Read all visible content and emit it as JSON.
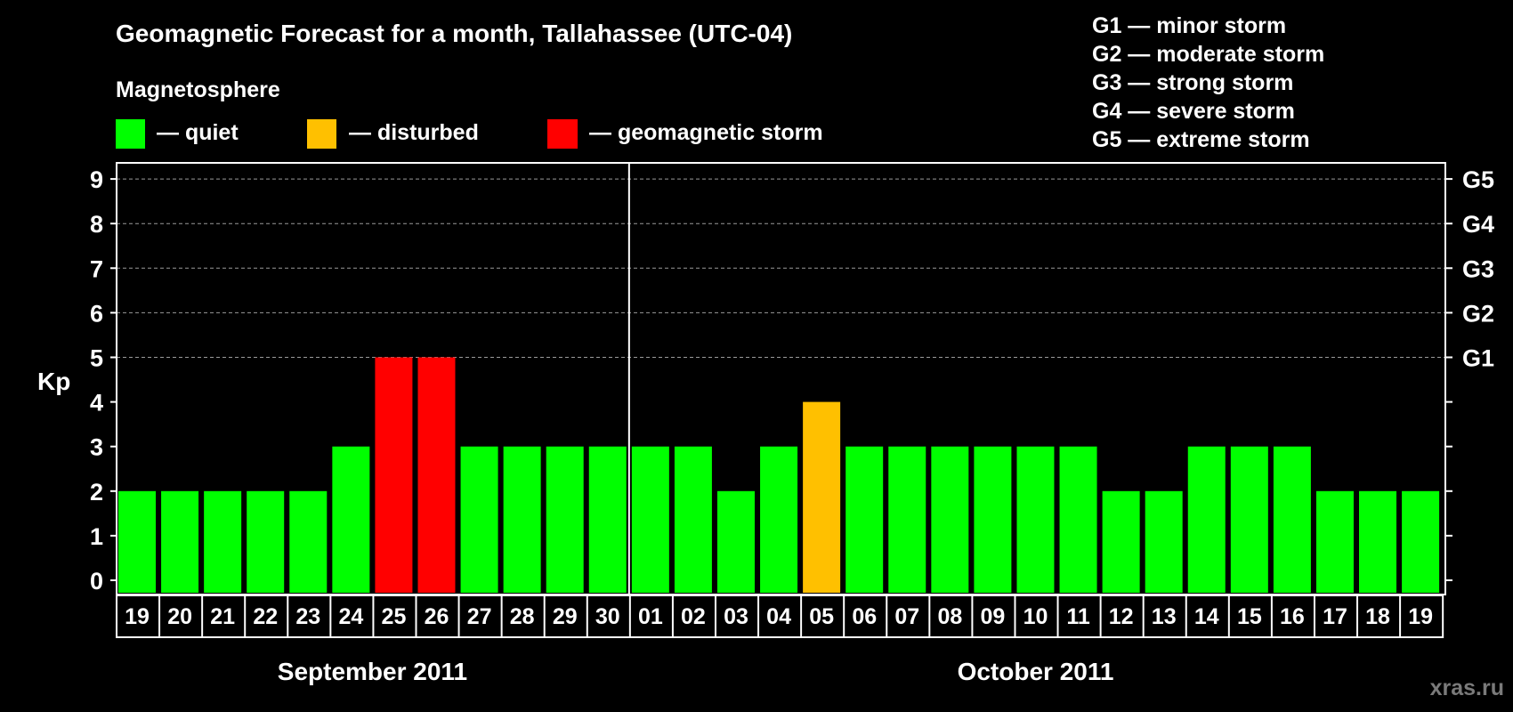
{
  "title": "Geomagnetic Forecast for a month, Tallahassee (UTC-04)",
  "legend": {
    "heading": "Magnetosphere",
    "items": [
      {
        "label": "— quiet",
        "color": "#00ff00"
      },
      {
        "label": "— disturbed",
        "color": "#ffc000"
      },
      {
        "label": "— geomagnetic storm",
        "color": "#ff0000"
      }
    ]
  },
  "storm_scale": [
    "G1 — minor storm",
    "G2 — moderate storm",
    "G3 — strong storm",
    "G4 — severe storm",
    "G5 — extreme storm"
  ],
  "watermark": "xras.ru",
  "chart_data": {
    "type": "bar",
    "ylabel": "Kp",
    "ylim": [
      0,
      9
    ],
    "yticks": [
      "0",
      "1",
      "2",
      "3",
      "4",
      "5",
      "6",
      "7",
      "8",
      "9"
    ],
    "right_ticks": [
      {
        "value": 5,
        "label": "G1"
      },
      {
        "value": 6,
        "label": "G2"
      },
      {
        "value": 7,
        "label": "G3"
      },
      {
        "value": 8,
        "label": "G4"
      },
      {
        "value": 9,
        "label": "G5"
      }
    ],
    "grid": "dashed horizontal lines at Kp 5-9",
    "months": [
      {
        "label": "September 2011",
        "count": 12
      },
      {
        "label": "October 2011",
        "count": 19
      }
    ],
    "categories": [
      "19",
      "20",
      "21",
      "22",
      "23",
      "24",
      "25",
      "26",
      "27",
      "28",
      "29",
      "30",
      "01",
      "02",
      "03",
      "04",
      "05",
      "06",
      "07",
      "08",
      "09",
      "10",
      "11",
      "12",
      "13",
      "14",
      "15",
      "16",
      "17",
      "18",
      "19"
    ],
    "values": [
      2,
      2,
      2,
      2,
      2,
      3,
      5,
      5,
      3,
      3,
      3,
      3,
      3,
      3,
      2,
      3,
      4,
      3,
      3,
      3,
      3,
      3,
      3,
      2,
      2,
      3,
      3,
      3,
      2,
      2,
      2
    ],
    "levels": [
      "quiet",
      "quiet",
      "quiet",
      "quiet",
      "quiet",
      "quiet",
      "storm",
      "storm",
      "quiet",
      "quiet",
      "quiet",
      "quiet",
      "quiet",
      "quiet",
      "quiet",
      "quiet",
      "disturbed",
      "quiet",
      "quiet",
      "quiet",
      "quiet",
      "quiet",
      "quiet",
      "quiet",
      "quiet",
      "quiet",
      "quiet",
      "quiet",
      "quiet",
      "quiet",
      "quiet"
    ],
    "colors": {
      "quiet": "#00ff00",
      "disturbed": "#ffc000",
      "storm": "#ff0000"
    }
  }
}
